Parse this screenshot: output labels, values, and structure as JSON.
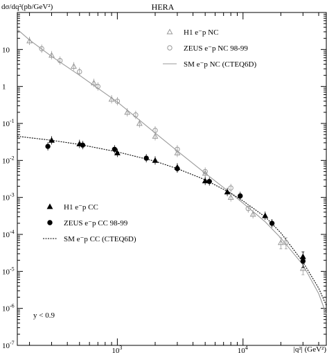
{
  "chart_data": {
    "type": "scatter",
    "title": "HERA",
    "ylabel": "dσ/dq²(pb/GeV²)",
    "xlabel": "|q²| (GeV²)",
    "x_scale": "log",
    "y_scale": "log",
    "xlim": [
      160,
      46000
    ],
    "ylim": [
      1e-07,
      100
    ],
    "x_ticks": [
      {
        "value": 1000,
        "label": "10",
        "exp": "3"
      },
      {
        "value": 10000,
        "label": "10",
        "exp": "4"
      }
    ],
    "y_ticks": [
      {
        "value": 1e-07,
        "label": "10",
        "exp": "-7"
      },
      {
        "value": 1e-06,
        "label": "10",
        "exp": "-6"
      },
      {
        "value": 1e-05,
        "label": "10",
        "exp": "-5"
      },
      {
        "value": 0.0001,
        "label": "10",
        "exp": "-4"
      },
      {
        "value": 0.001,
        "label": "10",
        "exp": "-3"
      },
      {
        "value": 0.01,
        "label": "10",
        "exp": "-2"
      },
      {
        "value": 0.1,
        "label": "10",
        "exp": "-1"
      },
      {
        "value": 1,
        "label": "1",
        "exp": ""
      },
      {
        "value": 10,
        "label": "10",
        "exp": ""
      }
    ],
    "annotation": "y < 0.9",
    "grid": false,
    "legend_nc": "top-right",
    "legend_cc": "middle-left",
    "series": [
      {
        "name": "H1 e⁻p NC",
        "marker": "triangle-open",
        "color": "#999999",
        "x": [
          200,
          300,
          450,
          650,
          900,
          1200,
          1500,
          2000,
          3000,
          5000,
          8000,
          12000,
          20000,
          30000
        ],
        "y": [
          17,
          7,
          3.5,
          1.25,
          0.45,
          0.2,
          0.1,
          0.045,
          0.016,
          0.0045,
          0.001,
          0.00035,
          6e-05,
          1.2e-05
        ]
      },
      {
        "name": "ZEUS e⁻p NC 98-99",
        "marker": "circle-open",
        "color": "#999999",
        "x": [
          250,
          350,
          500,
          700,
          1000,
          1400,
          2000,
          3000,
          5000,
          8000,
          11000,
          17000,
          22000
        ],
        "y": [
          10.5,
          5,
          2.5,
          1,
          0.4,
          0.17,
          0.065,
          0.02,
          0.005,
          0.0018,
          0.0005,
          0.0002,
          6e-05
        ]
      },
      {
        "name": "H1 e⁻p CC",
        "marker": "triangle-filled",
        "color": "#000000",
        "x": [
          300,
          500,
          1000,
          2000,
          3000,
          5000,
          7500,
          15000,
          30000
        ],
        "y": [
          0.035,
          0.028,
          0.016,
          0.01,
          0.0065,
          0.0028,
          0.0014,
          0.00032,
          2.5e-05
        ]
      },
      {
        "name": "ZEUS e⁻p CC 98-99",
        "marker": "circle-filled",
        "color": "#000000",
        "x": [
          280,
          530,
          950,
          1700,
          3000,
          5400,
          9500,
          17000,
          30000
        ],
        "y": [
          0.024,
          0.026,
          0.02,
          0.0115,
          0.006,
          0.0027,
          0.0011,
          0.0002,
          1.9e-05
        ]
      },
      {
        "name": "SM e⁻p NC (CTEQ6D)",
        "marker": "line-solid",
        "color": "#9a9a9a",
        "x": [
          160,
          200,
          300,
          500,
          1000,
          2000,
          3000,
          5000,
          8000,
          10000,
          15000,
          20000,
          30000,
          40000,
          46000
        ],
        "y": [
          35,
          18,
          6.5,
          2,
          0.38,
          0.055,
          0.018,
          0.0045,
          0.0013,
          0.0007,
          0.00022,
          8e-05,
          1.5e-05,
          2.5e-06,
          7e-07
        ]
      },
      {
        "name": "SM e⁻p CC (CTEQ6D)",
        "marker": "line-dotted",
        "color": "#000000",
        "x": [
          160,
          300,
          500,
          1000,
          2000,
          3000,
          5000,
          8000,
          10000,
          15000,
          20000,
          30000,
          40000,
          46000
        ],
        "y": [
          0.045,
          0.035,
          0.027,
          0.017,
          0.0095,
          0.006,
          0.003,
          0.0013,
          0.0008,
          0.0003,
          0.00011,
          1.8e-05,
          3.5e-06,
          1.2e-06
        ]
      }
    ]
  }
}
